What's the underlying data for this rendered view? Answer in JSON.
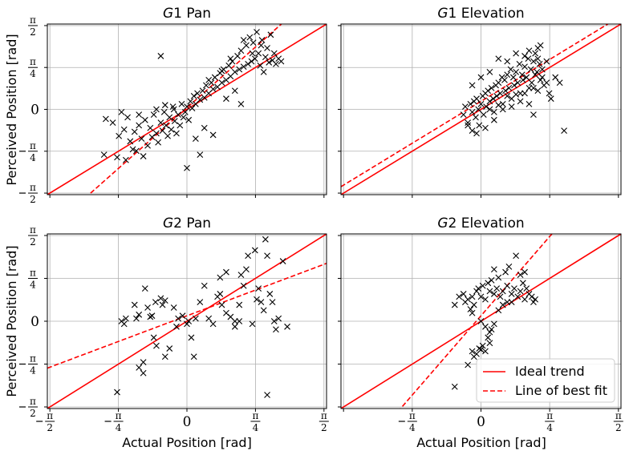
{
  "figure": {
    "legend": {
      "placement": "lower-right of G2 Elevation panel",
      "entries": [
        {
          "label": "Ideal trend",
          "color": "#ff0000",
          "style": "solid"
        },
        {
          "label": "Line of best fit",
          "color": "#ff0000",
          "style": "dashed"
        }
      ]
    },
    "ylabel": "Perceived Position [rad]",
    "xlabel": "Actual Position [rad]",
    "tick_labels": [
      "−π/2",
      "−π/4",
      "0",
      "π/4",
      "π/2"
    ]
  },
  "chart_data": [
    {
      "type": "scatter",
      "title_italic": "G",
      "title_rest": "1 Pan",
      "xlim": [
        -1.6,
        1.6
      ],
      "ylim": [
        -1.6,
        1.6
      ],
      "grid": true,
      "ideal_trend": {
        "slope": 1,
        "intercept": 0
      },
      "best_fit": {
        "slope": 1.45,
        "intercept": 0.03
      },
      "points": [
        [
          -0.93,
          -0.18
        ],
        [
          -0.85,
          -0.25
        ],
        [
          -0.78,
          -0.5
        ],
        [
          -0.72,
          -0.38
        ],
        [
          -0.65,
          -0.6
        ],
        [
          -0.6,
          -0.42
        ],
        [
          -0.58,
          -0.78
        ],
        [
          -0.55,
          -0.3
        ],
        [
          -0.52,
          -0.55
        ],
        [
          -0.48,
          -0.2
        ],
        [
          -0.45,
          -0.68
        ],
        [
          -0.42,
          -0.35
        ],
        [
          -0.4,
          -0.52
        ],
        [
          -0.38,
          -0.1
        ],
        [
          -0.35,
          -0.45
        ],
        [
          -0.33,
          -0.62
        ],
        [
          -0.3,
          -0.25
        ],
        [
          -0.28,
          -0.4
        ],
        [
          -0.26,
          -0.05
        ],
        [
          -0.24,
          -0.3
        ],
        [
          -0.22,
          -0.5
        ],
        [
          -0.2,
          -0.15
        ],
        [
          -0.18,
          -0.38
        ],
        [
          -0.16,
          0.05
        ],
        [
          -0.14,
          -0.22
        ],
        [
          -0.12,
          -0.45
        ],
        [
          -0.1,
          -0.1
        ],
        [
          -0.08,
          -0.3
        ],
        [
          -0.06,
          0.1
        ],
        [
          -0.04,
          -0.15
        ],
        [
          -0.02,
          -0.05
        ],
        [
          0.0,
          0.05
        ],
        [
          0.02,
          -0.2
        ],
        [
          0.04,
          0.15
        ],
        [
          0.06,
          0.02
        ],
        [
          0.08,
          0.25
        ],
        [
          0.1,
          0.1
        ],
        [
          0.12,
          0.3
        ],
        [
          0.15,
          0.18
        ],
        [
          0.18,
          0.35
        ],
        [
          0.2,
          0.22
        ],
        [
          0.22,
          0.45
        ],
        [
          0.25,
          0.3
        ],
        [
          0.28,
          0.5
        ],
        [
          0.3,
          0.38
        ],
        [
          0.32,
          0.6
        ],
        [
          0.35,
          0.42
        ],
        [
          0.38,
          0.68
        ],
        [
          0.4,
          0.5
        ],
        [
          0.42,
          0.75
        ],
        [
          0.45,
          0.55
        ],
        [
          0.48,
          0.82
        ],
        [
          0.5,
          0.62
        ],
        [
          0.52,
          0.9
        ],
        [
          0.55,
          0.7
        ],
        [
          0.58,
          1.0
        ],
        [
          0.6,
          0.75
        ],
        [
          0.62,
          1.1
        ],
        [
          0.65,
          0.8
        ],
        [
          0.68,
          1.2
        ],
        [
          0.7,
          0.85
        ],
        [
          0.72,
          1.35
        ],
        [
          0.74,
          0.9
        ],
        [
          0.76,
          1.25
        ],
        [
          0.78,
          0.95
        ],
        [
          0.8,
          1.45
        ],
        [
          0.82,
          1.05
        ],
        [
          0.84,
          0.82
        ],
        [
          0.86,
          1.3
        ],
        [
          0.88,
          0.7
        ],
        [
          0.9,
          0.98
        ],
        [
          0.92,
          1.15
        ],
        [
          0.94,
          0.88
        ],
        [
          0.96,
          1.4
        ],
        [
          0.98,
          0.92
        ],
        [
          1.0,
          1.05
        ],
        [
          1.02,
          0.85
        ],
        [
          1.05,
          0.95
        ],
        [
          1.08,
          0.9
        ],
        [
          0.45,
          0.2
        ],
        [
          0.55,
          0.35
        ],
        [
          0.62,
          0.1
        ],
        [
          0.2,
          -0.35
        ],
        [
          0.1,
          -0.55
        ],
        [
          -0.95,
          -0.85
        ],
        [
          -0.8,
          -0.9
        ],
        [
          -0.7,
          -0.95
        ],
        [
          -0.62,
          -0.75
        ],
        [
          -0.5,
          -0.88
        ],
        [
          0.0,
          -1.1
        ],
        [
          0.15,
          -0.85
        ],
        [
          0.3,
          -0.48
        ],
        [
          -0.3,
          1.0
        ],
        [
          -0.68,
          -0.15
        ],
        [
          -0.75,
          -0.05
        ],
        [
          -0.55,
          -0.1
        ],
        [
          -0.15,
          0.0
        ],
        [
          -0.25,
          0.08
        ],
        [
          -0.35,
          0.0
        ],
        [
          0.25,
          0.55
        ],
        [
          0.4,
          0.72
        ],
        [
          0.5,
          0.95
        ],
        [
          0.65,
          1.3
        ],
        [
          0.75,
          1.05
        ],
        [
          0.85,
          1.2
        ]
      ]
    },
    {
      "type": "scatter",
      "title_italic": "G",
      "title_rest": "1 Elevation",
      "xlim": [
        -1.6,
        1.6
      ],
      "ylim": [
        -1.6,
        1.6
      ],
      "grid": true,
      "ideal_trend": {
        "slope": 1,
        "intercept": 0
      },
      "best_fit": {
        "slope": 1.0,
        "intercept": 0.15
      },
      "points": [
        [
          -0.2,
          -0.1
        ],
        [
          -0.18,
          0.05
        ],
        [
          -0.15,
          -0.25
        ],
        [
          -0.12,
          0.1
        ],
        [
          -0.1,
          -0.05
        ],
        [
          -0.08,
          0.15
        ],
        [
          -0.06,
          -0.15
        ],
        [
          -0.05,
          0.2
        ],
        [
          -0.03,
          0.0
        ],
        [
          -0.02,
          -0.3
        ],
        [
          0.0,
          0.1
        ],
        [
          0.02,
          0.25
        ],
        [
          0.03,
          -0.1
        ],
        [
          0.05,
          0.3
        ],
        [
          0.06,
          0.05
        ],
        [
          0.08,
          0.35
        ],
        [
          0.1,
          0.15
        ],
        [
          0.12,
          0.4
        ],
        [
          0.14,
          0.2
        ],
        [
          0.15,
          -0.05
        ],
        [
          0.17,
          0.45
        ],
        [
          0.18,
          0.25
        ],
        [
          0.2,
          0.5
        ],
        [
          0.22,
          0.3
        ],
        [
          0.24,
          0.6
        ],
        [
          0.25,
          0.1
        ],
        [
          0.27,
          0.55
        ],
        [
          0.28,
          0.35
        ],
        [
          0.3,
          0.65
        ],
        [
          0.32,
          0.4
        ],
        [
          0.34,
          0.75
        ],
        [
          0.35,
          0.2
        ],
        [
          0.37,
          0.6
        ],
        [
          0.38,
          0.45
        ],
        [
          0.4,
          0.7
        ],
        [
          0.42,
          0.5
        ],
        [
          0.44,
          0.85
        ],
        [
          0.45,
          0.3
        ],
        [
          0.47,
          0.65
        ],
        [
          0.48,
          0.55
        ],
        [
          0.5,
          0.8
        ],
        [
          0.52,
          0.6
        ],
        [
          0.54,
          0.95
        ],
        [
          0.55,
          0.4
        ],
        [
          0.57,
          0.75
        ],
        [
          0.58,
          0.5
        ],
        [
          0.6,
          0.9
        ],
        [
          0.62,
          0.65
        ],
        [
          0.64,
          0.7
        ],
        [
          0.65,
          0.35
        ],
        [
          0.67,
          0.85
        ],
        [
          0.68,
          0.55
        ],
        [
          0.7,
          0.6
        ],
        [
          0.72,
          0.45
        ],
        [
          0.75,
          0.5
        ],
        [
          0.78,
          0.3
        ],
        [
          0.8,
          0.2
        ],
        [
          -0.05,
          -0.45
        ],
        [
          0.05,
          -0.35
        ],
        [
          0.15,
          -0.2
        ],
        [
          0.25,
          0.0
        ],
        [
          0.35,
          0.05
        ],
        [
          0.45,
          0.15
        ],
        [
          0.55,
          0.1
        ],
        [
          0.6,
          -0.1
        ],
        [
          -0.15,
          -0.3
        ],
        [
          -0.1,
          -0.4
        ],
        [
          0.1,
          0.0
        ],
        [
          0.2,
          0.08
        ],
        [
          0.3,
          0.25
        ],
        [
          0.4,
          0.28
        ],
        [
          0.5,
          0.3
        ],
        [
          0.6,
          0.4
        ],
        [
          0.7,
          0.75
        ],
        [
          0.3,
          0.9
        ],
        [
          0.5,
          1.0
        ],
        [
          0.55,
          1.1
        ],
        [
          0.62,
          1.05
        ],
        [
          0.65,
          1.15
        ],
        [
          0.68,
          1.2
        ],
        [
          0.4,
          1.05
        ],
        [
          0.2,
          0.95
        ],
        [
          0.0,
          0.6
        ],
        [
          -0.1,
          0.45
        ],
        [
          0.1,
          0.7
        ],
        [
          0.95,
          -0.4
        ],
        [
          0.85,
          0.6
        ],
        [
          0.9,
          0.5
        ],
        [
          0.75,
          0.9
        ],
        [
          0.65,
          0.95
        ]
      ]
    },
    {
      "type": "scatter",
      "title_italic": "G",
      "title_rest": "2 Pan",
      "xlim": [
        -1.6,
        1.6
      ],
      "ylim": [
        -1.6,
        1.6
      ],
      "grid": true,
      "ideal_trend": {
        "slope": 1,
        "intercept": 0
      },
      "best_fit": {
        "slope": 0.6,
        "intercept": 0.1
      },
      "points": [
        [
          -0.75,
          0.0
        ],
        [
          -0.72,
          -0.05
        ],
        [
          -0.7,
          0.05
        ],
        [
          -0.6,
          0.3
        ],
        [
          -0.58,
          0.05
        ],
        [
          -0.55,
          0.12
        ],
        [
          -0.55,
          -0.85
        ],
        [
          -0.5,
          -0.75
        ],
        [
          -0.5,
          -0.95
        ],
        [
          -0.48,
          0.6
        ],
        [
          -0.45,
          0.25
        ],
        [
          -0.42,
          0.08
        ],
        [
          -0.4,
          0.1
        ],
        [
          -0.38,
          -0.3
        ],
        [
          -0.36,
          0.35
        ],
        [
          -0.35,
          -0.45
        ],
        [
          -0.3,
          0.42
        ],
        [
          -0.28,
          0.3
        ],
        [
          -0.25,
          0.38
        ],
        [
          -0.25,
          -0.65
        ],
        [
          -0.2,
          -0.5
        ],
        [
          -0.15,
          0.25
        ],
        [
          -0.12,
          -0.1
        ],
        [
          -0.1,
          0.05
        ],
        [
          -0.05,
          0.1
        ],
        [
          0.0,
          -0.05
        ],
        [
          0.02,
          0.0
        ],
        [
          0.05,
          -0.3
        ],
        [
          0.08,
          -0.65
        ],
        [
          0.1,
          0.05
        ],
        [
          0.15,
          0.35
        ],
        [
          0.25,
          0.05
        ],
        [
          0.3,
          -0.05
        ],
        [
          0.35,
          0.45
        ],
        [
          0.38,
          0.5
        ],
        [
          0.4,
          0.3
        ],
        [
          0.45,
          0.15
        ],
        [
          0.5,
          0.08
        ],
        [
          0.55,
          0.0
        ],
        [
          0.6,
          0.3
        ],
        [
          0.62,
          0.85
        ],
        [
          0.65,
          0.65
        ],
        [
          0.68,
          0.95
        ],
        [
          0.7,
          1.2
        ],
        [
          0.75,
          -0.05
        ],
        [
          0.78,
          1.3
        ],
        [
          0.8,
          0.4
        ],
        [
          0.82,
          0.6
        ],
        [
          0.85,
          0.35
        ],
        [
          0.88,
          0.2
        ],
        [
          0.9,
          1.5
        ],
        [
          0.92,
          1.2
        ],
        [
          0.95,
          0.5
        ],
        [
          0.98,
          0.35
        ],
        [
          1.0,
          0.0
        ],
        [
          1.02,
          -0.15
        ],
        [
          1.05,
          0.05
        ],
        [
          1.1,
          1.1
        ],
        [
          1.15,
          -0.1
        ],
        [
          0.92,
          -1.35
        ],
        [
          -0.8,
          -1.3
        ],
        [
          0.55,
          -0.1
        ],
        [
          0.2,
          0.65
        ],
        [
          0.38,
          0.8
        ],
        [
          0.45,
          0.9
        ],
        [
          0.6,
          0.0
        ]
      ]
    },
    {
      "type": "scatter",
      "title_italic": "G",
      "title_rest": "2 Elevation",
      "xlim": [
        -1.6,
        1.6
      ],
      "ylim": [
        -1.6,
        1.6
      ],
      "grid": true,
      "ideal_trend": {
        "slope": 1,
        "intercept": 0
      },
      "best_fit": {
        "slope": 1.85,
        "intercept": 0.1
      },
      "points": [
        [
          -0.3,
          -1.2
        ],
        [
          -0.15,
          -0.8
        ],
        [
          -0.1,
          -0.55
        ],
        [
          -0.08,
          -0.65
        ],
        [
          -0.05,
          -0.6
        ],
        [
          -0.02,
          -0.5
        ],
        [
          0.0,
          -0.52
        ],
        [
          0.02,
          -0.45
        ],
        [
          0.05,
          -0.55
        ],
        [
          0.08,
          -0.3
        ],
        [
          0.1,
          -0.4
        ],
        [
          0.12,
          -0.15
        ],
        [
          0.15,
          -0.05
        ],
        [
          -0.2,
          0.5
        ],
        [
          -0.18,
          0.35
        ],
        [
          -0.15,
          0.4
        ],
        [
          -0.12,
          0.22
        ],
        [
          -0.1,
          0.15
        ],
        [
          -0.08,
          0.3
        ],
        [
          -0.05,
          0.55
        ],
        [
          -0.03,
          0.6
        ],
        [
          0.0,
          0.45
        ],
        [
          0.02,
          0.65
        ],
        [
          0.05,
          0.4
        ],
        [
          0.08,
          0.7
        ],
        [
          0.1,
          0.55
        ],
        [
          0.12,
          0.75
        ],
        [
          0.15,
          0.5
        ],
        [
          0.18,
          0.6
        ],
        [
          0.2,
          0.8
        ],
        [
          0.22,
          0.45
        ],
        [
          0.25,
          0.55
        ],
        [
          0.28,
          0.9
        ],
        [
          0.3,
          0.65
        ],
        [
          0.32,
          1.0
        ],
        [
          0.35,
          0.5
        ],
        [
          0.38,
          0.6
        ],
        [
          0.4,
          1.2
        ],
        [
          0.42,
          0.45
        ],
        [
          0.45,
          0.55
        ],
        [
          0.48,
          0.7
        ],
        [
          0.5,
          0.4
        ],
        [
          0.52,
          0.6
        ],
        [
          0.55,
          0.5
        ],
        [
          0.58,
          0.45
        ],
        [
          0.6,
          0.35
        ],
        [
          0.62,
          0.4
        ],
        [
          0.3,
          0.35
        ],
        [
          0.25,
          0.3
        ],
        [
          0.2,
          0.2
        ],
        [
          -0.1,
          0.45
        ],
        [
          -0.25,
          0.45
        ],
        [
          -0.3,
          0.3
        ],
        [
          0.0,
          0.0
        ],
        [
          0.05,
          -0.1
        ],
        [
          0.1,
          -0.2
        ],
        [
          0.15,
          0.95
        ],
        [
          0.35,
          0.35
        ],
        [
          0.45,
          0.85
        ],
        [
          0.5,
          0.9
        ]
      ]
    }
  ]
}
